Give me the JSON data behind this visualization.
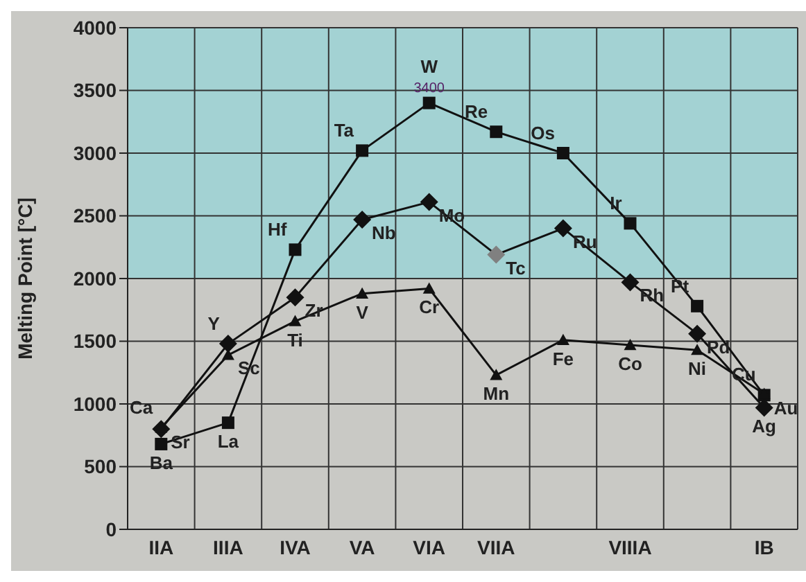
{
  "chart_data": {
    "type": "line",
    "ylabel": "Melting Point [°C]",
    "categories": [
      "IIA",
      "IIIA",
      "IVA",
      "VA",
      "VIA",
      "VIIA",
      null,
      "VIIIA",
      null,
      "IB"
    ],
    "ylim": [
      0,
      4000
    ],
    "yticks": [
      0,
      500,
      1000,
      1500,
      2000,
      2500,
      3000,
      3500,
      4000
    ],
    "grid": true,
    "bands": [
      {
        "axis": "y",
        "from": 2000,
        "to": 4000,
        "color": "#a3d2d3"
      }
    ],
    "series": [
      {
        "color": "#111111",
        "marker": "square",
        "values": [
          680,
          850,
          2230,
          3020,
          3400,
          3170,
          3000,
          2440,
          1780,
          1070
        ],
        "value_labels": [
          null,
          null,
          null,
          null,
          "3400",
          null,
          null,
          null,
          null,
          null
        ]
      },
      {
        "color": "#111111",
        "marker": "diamond",
        "values": [
          800,
          1480,
          1850,
          2470,
          2610,
          2190,
          2400,
          1970,
          1560,
          970
        ],
        "colors": [
          "#111111",
          "#111111",
          "#111111",
          "#111111",
          "#111111",
          "#808080",
          "#111111",
          "#111111",
          "#111111",
          "#111111"
        ]
      },
      {
        "color": "#111111",
        "marker": "triangle",
        "values": [
          810,
          1390,
          1660,
          1880,
          1920,
          1230,
          1510,
          1470,
          1430,
          1080
        ]
      }
    ],
    "annotations": [
      {
        "text": "Ba",
        "x": "IIA",
        "y": 680
      },
      {
        "text": "La",
        "x": "IIIA",
        "y": 850
      },
      {
        "text": "Hf",
        "x": "IVA",
        "y": 2230
      },
      {
        "text": "Ta",
        "x": "VA",
        "y": 3020
      },
      {
        "text": "W",
        "x": "VIA",
        "y": 3400
      },
      {
        "text": "Re",
        "x": "VIIA",
        "y": 3170
      },
      "Os",
      {
        "text": "Ir",
        "x": "VIIIA",
        "y": 2440
      },
      "Pt",
      {
        "text": "Au",
        "x": "IB",
        "y": 1070
      },
      {
        "text": "Sr",
        "x": "IIA",
        "y": 800
      },
      {
        "text": "Y",
        "x": "IIIA",
        "y": 1480
      },
      {
        "text": "Zr",
        "x": "IVA",
        "y": 1850
      },
      {
        "text": "Nb",
        "x": "VA",
        "y": 2470
      },
      {
        "text": "Mo",
        "x": "VIA",
        "y": 2610
      },
      {
        "text": "Tc",
        "x": "VIIA",
        "y": 2190
      },
      "Ru",
      {
        "text": "Rh",
        "x": "VIIIA",
        "y": 1970
      },
      "Pd",
      {
        "text": "Ag",
        "x": "IB",
        "y": 970
      },
      {
        "text": "Ca",
        "x": "IIA",
        "y": 810
      },
      {
        "text": "Sc",
        "x": "IIIA",
        "y": 1390
      },
      {
        "text": "Ti",
        "x": "IVA",
        "y": 1660
      },
      {
        "text": "V",
        "x": "VA",
        "y": 1880
      },
      {
        "text": "Cr",
        "x": "VIA",
        "y": 1920
      },
      {
        "text": "Mn",
        "x": "VIIA",
        "y": 1230
      },
      "Fe",
      {
        "text": "Co",
        "x": "VIIIA",
        "y": 1470
      },
      "Ni",
      {
        "text": "Cu",
        "x": "IB",
        "y": 1080
      }
    ]
  }
}
